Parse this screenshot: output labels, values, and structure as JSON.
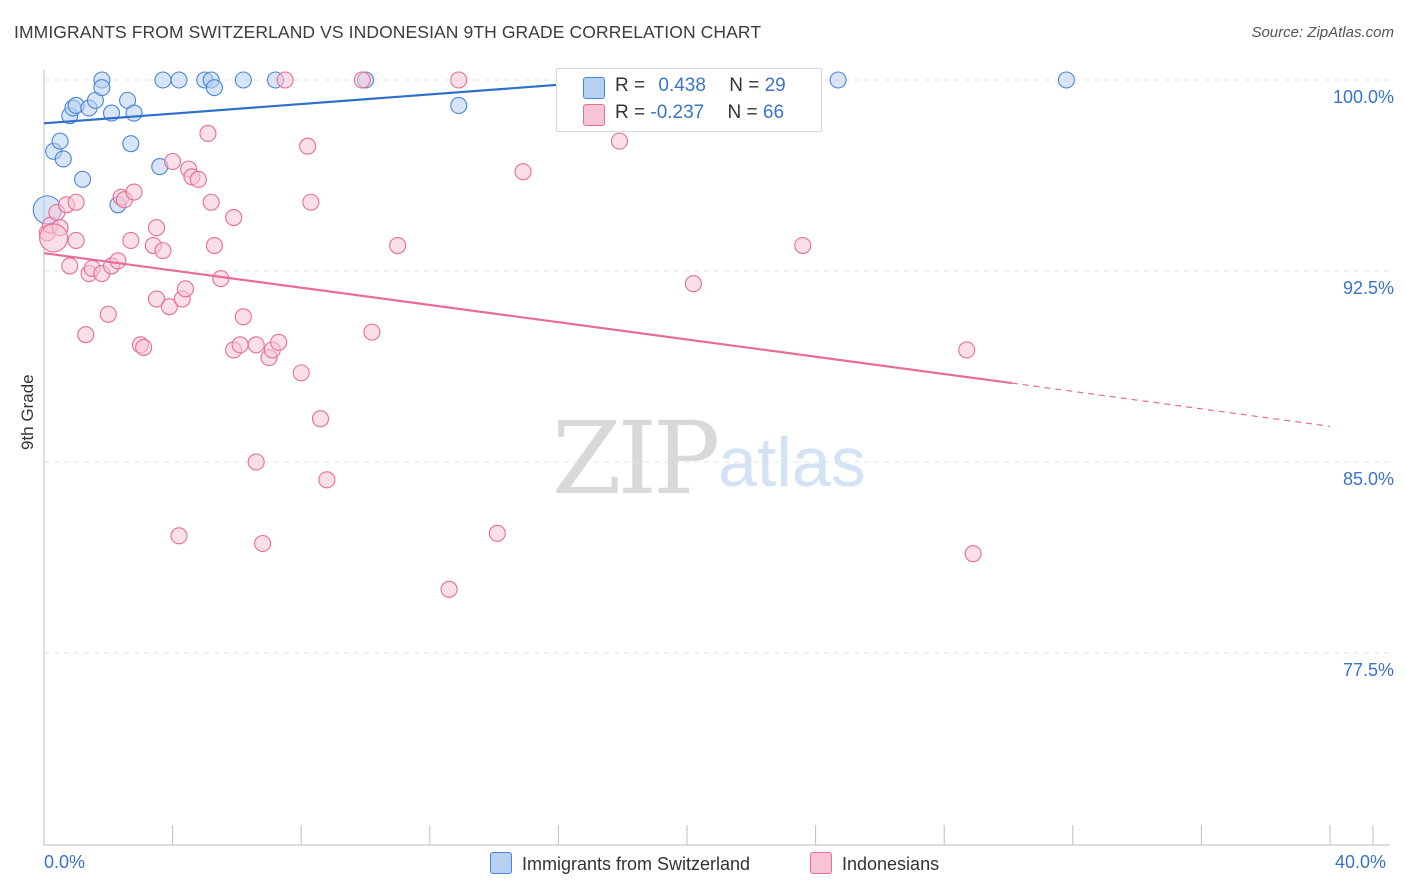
{
  "title": "IMMIGRANTS FROM SWITZERLAND VS INDONESIAN 9TH GRADE CORRELATION CHART",
  "source": "Source: ZipAtlas.com",
  "watermark": {
    "zip": "ZIP",
    "atlas": "atlas"
  },
  "colors": {
    "blue": "#4a86d8",
    "blue_fill": "#b7cff0",
    "pink": "#e66d98",
    "pink_fill": "#f7c4d5",
    "tick_text": "#3a73c9",
    "grid": "#e3e3e3"
  },
  "legend": {
    "rows": [
      {
        "r_label": "R = ",
        "r_value": "0.438",
        "n_label": "N = ",
        "n_value": "29"
      },
      {
        "r_label": "R = ",
        "r_value": "-0.237",
        "n_label": "N = ",
        "n_value": "66"
      }
    ]
  },
  "bottom_legend": [
    {
      "label": "Immigrants from Switzerland"
    },
    {
      "label": "Indonesians"
    }
  ],
  "x_tick_labels": {
    "left": "0.0%",
    "right": "40.0%"
  },
  "y_tick_labels": [
    "100.0%",
    "92.5%",
    "85.0%",
    "77.5%"
  ],
  "chart_data": {
    "type": "scatter",
    "title": "IMMIGRANTS FROM SWITZERLAND VS INDONESIAN 9TH GRADE CORRELATION CHART",
    "xlabel": "",
    "ylabel": "9th Grade",
    "xlim": [
      0,
      40
    ],
    "ylim": [
      70.0,
      100.6
    ],
    "y_ticks": [
      100.0,
      92.5,
      85.0,
      77.5
    ],
    "grid": true,
    "series": [
      {
        "name": "Immigrants from Switzerland",
        "R": 0.438,
        "N": 29,
        "points": [
          [
            0.1,
            94.9
          ],
          [
            0.3,
            97.2
          ],
          [
            0.5,
            97.6
          ],
          [
            0.6,
            96.9
          ],
          [
            0.8,
            98.6
          ],
          [
            0.9,
            98.9
          ],
          [
            1.0,
            99.0
          ],
          [
            1.2,
            96.1
          ],
          [
            1.4,
            98.9
          ],
          [
            1.6,
            99.2
          ],
          [
            1.8,
            100.0
          ],
          [
            1.8,
            99.7
          ],
          [
            2.1,
            98.7
          ],
          [
            2.6,
            99.2
          ],
          [
            2.7,
            97.5
          ],
          [
            2.8,
            98.7
          ],
          [
            2.3,
            95.1
          ],
          [
            3.6,
            96.6
          ],
          [
            3.7,
            100.0
          ],
          [
            4.2,
            100.0
          ],
          [
            5.0,
            100.0
          ],
          [
            5.2,
            100.0
          ],
          [
            5.3,
            99.7
          ],
          [
            6.2,
            100.0
          ],
          [
            7.2,
            100.0
          ],
          [
            10.0,
            100.0
          ],
          [
            12.9,
            99.0
          ],
          [
            24.7,
            100.0
          ],
          [
            31.8,
            100.0
          ]
        ],
        "trend": {
          "x0": 0.0,
          "y0": 98.3,
          "x1": 18.0,
          "y1": 100.0,
          "dashed_to": null
        }
      },
      {
        "name": "Indonesians",
        "R": -0.237,
        "N": 66,
        "points": [
          [
            0.1,
            94.0
          ],
          [
            0.2,
            94.3
          ],
          [
            0.4,
            94.8
          ],
          [
            0.5,
            94.2
          ],
          [
            0.7,
            95.1
          ],
          [
            0.8,
            92.7
          ],
          [
            1.0,
            93.7
          ],
          [
            1.0,
            95.2
          ],
          [
            1.3,
            90.0
          ],
          [
            1.4,
            92.4
          ],
          [
            1.5,
            92.6
          ],
          [
            1.8,
            92.4
          ],
          [
            2.0,
            90.8
          ],
          [
            2.1,
            92.7
          ],
          [
            2.3,
            92.9
          ],
          [
            2.4,
            95.4
          ],
          [
            2.5,
            95.3
          ],
          [
            2.7,
            93.7
          ],
          [
            2.8,
            95.6
          ],
          [
            3.0,
            89.6
          ],
          [
            3.1,
            89.5
          ],
          [
            3.4,
            93.5
          ],
          [
            3.5,
            94.2
          ],
          [
            3.5,
            91.4
          ],
          [
            3.7,
            93.3
          ],
          [
            3.9,
            91.1
          ],
          [
            4.0,
            96.8
          ],
          [
            4.3,
            91.4
          ],
          [
            4.4,
            91.8
          ],
          [
            4.5,
            96.5
          ],
          [
            4.6,
            96.2
          ],
          [
            4.8,
            96.1
          ],
          [
            5.1,
            97.9
          ],
          [
            5.2,
            95.2
          ],
          [
            5.3,
            93.5
          ],
          [
            5.5,
            92.2
          ],
          [
            5.9,
            89.4
          ],
          [
            5.9,
            94.6
          ],
          [
            6.1,
            89.6
          ],
          [
            6.2,
            90.7
          ],
          [
            6.6,
            89.6
          ],
          [
            6.6,
            85.0
          ],
          [
            6.8,
            81.8
          ],
          [
            7.0,
            89.1
          ],
          [
            7.1,
            89.4
          ],
          [
            7.3,
            89.7
          ],
          [
            7.5,
            100.0
          ],
          [
            8.0,
            88.5
          ],
          [
            8.2,
            97.4
          ],
          [
            8.3,
            95.2
          ],
          [
            8.6,
            86.7
          ],
          [
            8.8,
            84.3
          ],
          [
            4.2,
            82.1
          ],
          [
            10.2,
            90.1
          ],
          [
            9.9,
            100.0
          ],
          [
            11.0,
            93.5
          ],
          [
            12.6,
            80.0
          ],
          [
            12.9,
            100.0
          ],
          [
            14.1,
            82.2
          ],
          [
            14.9,
            96.4
          ],
          [
            17.9,
            97.6
          ],
          [
            20.2,
            92.0
          ],
          [
            23.6,
            93.5
          ],
          [
            28.7,
            89.4
          ],
          [
            28.9,
            81.4
          ],
          [
            0.3,
            93.8
          ]
        ],
        "trend": {
          "x0": 0.0,
          "y0": 93.2,
          "x1": 30.1,
          "y1": 88.1,
          "dashed_to": {
            "x": 40.0,
            "y": 86.4
          }
        }
      }
    ]
  }
}
